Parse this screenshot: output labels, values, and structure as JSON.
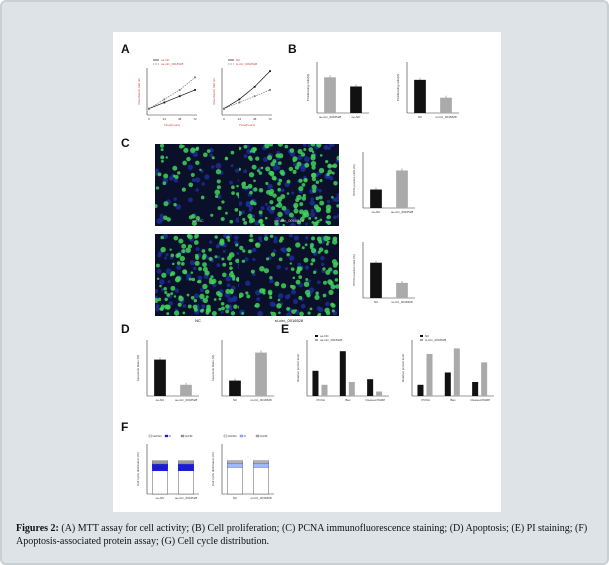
{
  "caption": {
    "label": "Figures 2:",
    "text": " (A) MTT assay for cell activity; (B) Cell proliferation; (C) PCNA immunofluorescence staining; (D) Apoptosis; (E) PI staining; (F) Apoptosis-associated protein assay; (G) Cell cycle distribution."
  },
  "panels": {
    "A": "A",
    "B": "B",
    "C": "C",
    "D": "D",
    "E": "E",
    "F": "F"
  },
  "micro_labels": {
    "top_left": "oe-NC",
    "top_right": "oe-circ_0016528",
    "bottom_left": "NC",
    "bottom_right": "si-circ_0016528"
  },
  "colors": {
    "black_series": "#111111",
    "gray_series": "#aaaaaa",
    "red_axis": "#d23c3c",
    "fluor_green": "#3fd25a",
    "fluor_blue": "#1e2e9a"
  },
  "chart_data": [
    {
      "id": "A1",
      "type": "line",
      "ylabel": "Absorbance 490 nm",
      "xlabel": "Time(hours)",
      "x": [
        0,
        24,
        48,
        72
      ],
      "series": [
        {
          "name": "oe-NC",
          "values": [
            0.2,
            0.4,
            0.6,
            0.8
          ]
        },
        {
          "name": "oe-circ_0016528",
          "values": [
            0.2,
            0.5,
            0.8,
            1.2
          ]
        }
      ]
    },
    {
      "id": "A2",
      "type": "line",
      "ylabel": "Absorbance 490 nm",
      "xlabel": "Time(hours)",
      "x": [
        0,
        24,
        48,
        72
      ],
      "series": [
        {
          "name": "NC",
          "values": [
            0.2,
            0.5,
            0.9,
            1.4
          ]
        },
        {
          "name": "si-circ_0016528",
          "values": [
            0.2,
            0.4,
            0.6,
            0.8
          ]
        }
      ]
    },
    {
      "id": "B1",
      "type": "bar",
      "ylabel": "Proliferating cells(%)",
      "categories": [
        "oe-circ_0016528",
        "oe-NC"
      ],
      "values": [
        70,
        52
      ]
    },
    {
      "id": "B2",
      "type": "bar",
      "ylabel": "Proliferating cells(%)",
      "categories": [
        "NC",
        "si-circ_0016528"
      ],
      "values": [
        65,
        30
      ]
    },
    {
      "id": "C1",
      "type": "bar",
      "ylabel": "PCNA positive cells (%)",
      "categories": [
        "oe-NC",
        "oe-circ_0016528"
      ],
      "values": [
        33,
        67
      ]
    },
    {
      "id": "C2",
      "type": "bar",
      "ylabel": "PCNA positive cells (%)",
      "categories": [
        "NC",
        "si-circ_0016528"
      ],
      "values": [
        63,
        27
      ]
    },
    {
      "id": "D1",
      "type": "bar",
      "ylabel": "Apoptosis Ratio (%)",
      "categories": [
        "oe-NC",
        "oe-circ_0016528"
      ],
      "values": [
        26,
        8
      ]
    },
    {
      "id": "D2",
      "type": "bar",
      "ylabel": "Apoptosis Ratio (%)",
      "categories": [
        "NC",
        "si-circ_0016528"
      ],
      "values": [
        11,
        31
      ]
    },
    {
      "id": "E1",
      "type": "bar",
      "ylabel": "Relative protein level",
      "categories": [
        "PCNA",
        "Bax",
        "Cleaved PARP"
      ],
      "series": [
        {
          "name": "oe-NC",
          "values": [
            0.45,
            0.8,
            0.3
          ]
        },
        {
          "name": "oe-circ_0016528",
          "values": [
            0.2,
            0.25,
            0.08
          ]
        }
      ]
    },
    {
      "id": "E2",
      "type": "bar",
      "ylabel": "Relative protein level",
      "categories": [
        "PCNA",
        "Bax",
        "Cleaved PARP"
      ],
      "series": [
        {
          "name": "NC",
          "values": [
            0.2,
            0.42,
            0.25
          ]
        },
        {
          "name": "si-circ_0016528",
          "values": [
            0.75,
            0.85,
            0.6
          ]
        }
      ]
    },
    {
      "id": "F1",
      "type": "bar",
      "ylabel": "Cell cycle distribution (%)",
      "categories": [
        "oe-NC",
        "oe-circ_0016528"
      ],
      "series": [
        {
          "name": "G0/G1",
          "values": [
            70,
            70
          ]
        },
        {
          "name": "S",
          "values": [
            20,
            20
          ]
        },
        {
          "name": "G2/M",
          "values": [
            10,
            10
          ]
        }
      ]
    },
    {
      "id": "F2",
      "type": "bar",
      "ylabel": "Cell cycle distribution (%)",
      "categories": [
        "NC",
        "si-circ_0016528"
      ],
      "series": [
        {
          "name": "G0/G1",
          "values": [
            80,
            80
          ]
        },
        {
          "name": "S",
          "values": [
            12,
            12
          ]
        },
        {
          "name": "G2/M",
          "values": [
            8,
            8
          ]
        }
      ]
    }
  ]
}
